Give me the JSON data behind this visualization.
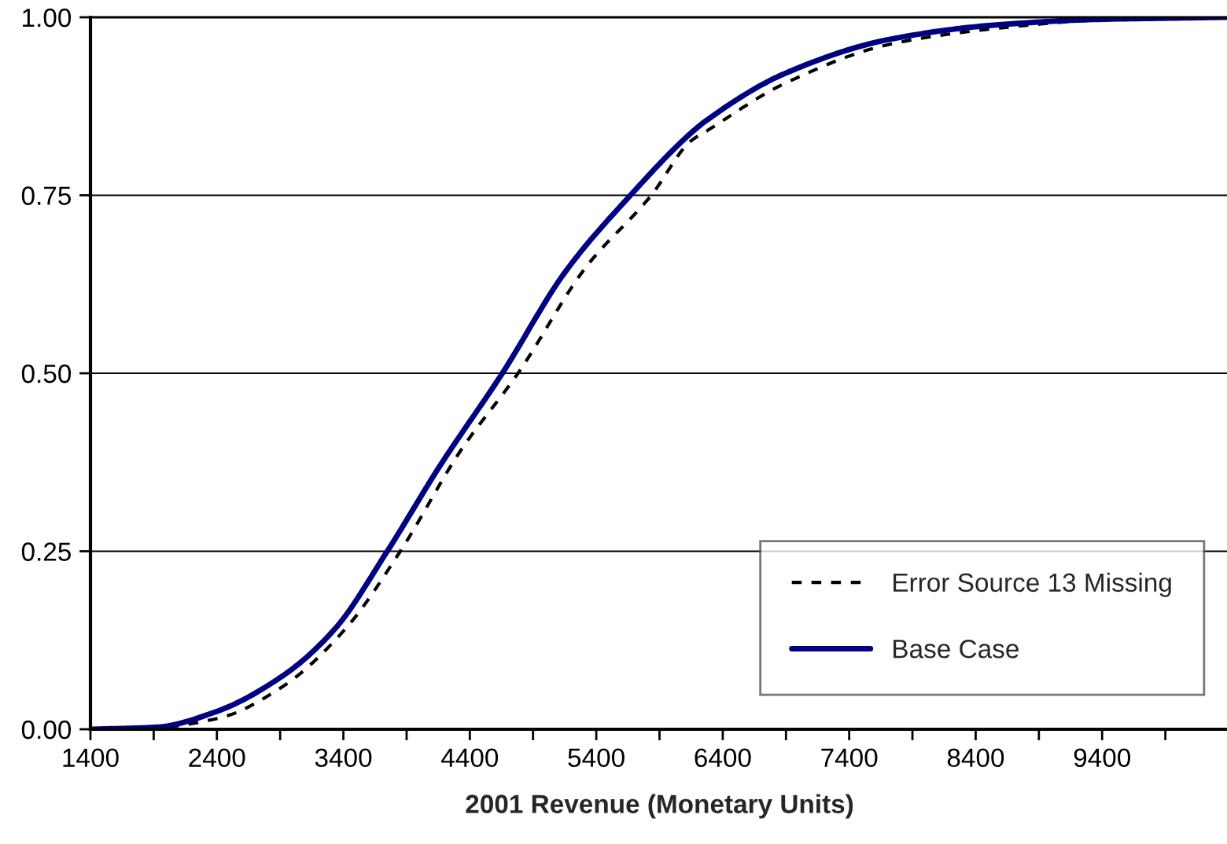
{
  "chart_data": {
    "type": "line",
    "xlabel": "2001 Revenue (Monetary Units)",
    "xlim": [
      1400,
      10400
    ],
    "xticks": [
      1400,
      {
        "value": 1900,
        "label": null
      },
      2400,
      {
        "value": 2900,
        "label": null
      },
      3400,
      {
        "value": 3900,
        "label": null
      },
      4400,
      {
        "value": 4900,
        "label": null
      },
      5400,
      {
        "value": 5900,
        "label": null
      },
      6400,
      {
        "value": 6900,
        "label": null
      },
      7400,
      {
        "value": 7900,
        "label": null
      },
      8400,
      {
        "value": 8900,
        "label": null
      },
      9400,
      {
        "value": 9900,
        "label": null
      }
    ],
    "ylim": [
      0,
      1
    ],
    "yticks": [
      {
        "value": 0,
        "label": "0.00"
      },
      {
        "value": 0.25,
        "label": "0.25"
      },
      {
        "value": 0.5,
        "label": "0.50"
      },
      {
        "value": 0.75,
        "label": "0.75"
      },
      {
        "value": 1,
        "label": "1.00"
      }
    ],
    "grid": "y",
    "legend": "bottom right",
    "marker": "none",
    "series": [
      {
        "name": "Error Source 13 Missing",
        "color": "#000000",
        "line_style": "dashed",
        "x": [
          1400,
          1900,
          2424,
          2920,
          3416,
          3850,
          4326,
          4781,
          5318,
          5835,
          6146,
          6270,
          6890,
          7718,
          8544,
          9371,
          10400
        ],
        "values": [
          0,
          0.002,
          0.016,
          0.06,
          0.141,
          0.25,
          0.391,
          0.5,
          0.649,
          0.75,
          0.826,
          0.84,
          0.907,
          0.962,
          0.984,
          0.996,
          1.0
        ]
      },
      {
        "name": "Base Case",
        "color": "#000080",
        "line_style": "solid",
        "x": [
          1400,
          1927,
          2383,
          2920,
          3333,
          3747,
          4160,
          4657,
          5153,
          5670,
          6146,
          6270,
          6890,
          7718,
          8544,
          9371,
          10400
        ],
        "values": [
          0,
          0.003,
          0.024,
          0.075,
          0.141,
          0.25,
          0.369,
          0.5,
          0.642,
          0.75,
          0.837,
          0.855,
          0.921,
          0.969,
          0.989,
          0.997,
          1.0
        ]
      }
    ]
  }
}
